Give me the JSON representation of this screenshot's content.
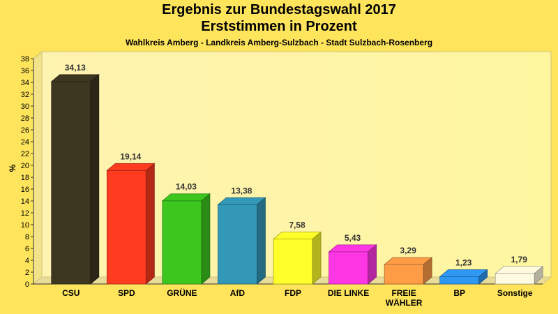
{
  "chart_data": {
    "type": "bar",
    "title": "Ergebnis zur Bundestagswahl 2017",
    "subtitle": "Erststimmen in Prozent",
    "subtitle2": "Wahlkreis Amberg - Landkreis Amberg-Sulzbach - Stadt Sulzbach-Rosenberg",
    "xlabel": "",
    "ylabel": "%",
    "ylim": [
      0,
      38
    ],
    "ytick_step": 2,
    "grid": false,
    "categories": [
      "CSU",
      "SPD",
      "GRÜNE",
      "AfD",
      "FDP",
      "DIE LINKE",
      "FREIE WÄHLER",
      "BP",
      "Sonstige"
    ],
    "category_lines": [
      [
        "CSU"
      ],
      [
        "SPD"
      ],
      [
        "GRÜNE"
      ],
      [
        "AfD"
      ],
      [
        "FDP"
      ],
      [
        "DIE LINKE"
      ],
      [
        "FREIE",
        "WÄHLER"
      ],
      [
        "BP"
      ],
      [
        "Sonstige"
      ]
    ],
    "values": [
      34.13,
      19.14,
      14.03,
      13.38,
      7.58,
      5.43,
      3.29,
      1.23,
      1.79
    ],
    "value_labels": [
      "34,13",
      "19,14",
      "14,03",
      "13,38",
      "7,58",
      "5,43",
      "3,29",
      "1,23",
      "1,79"
    ],
    "colors": [
      "#3d3620",
      "#ff3b20",
      "#3cc61e",
      "#3398b8",
      "#ffff2a",
      "#ff36e4",
      "#ff9c46",
      "#2f98f4",
      "#fffbe0"
    ]
  }
}
